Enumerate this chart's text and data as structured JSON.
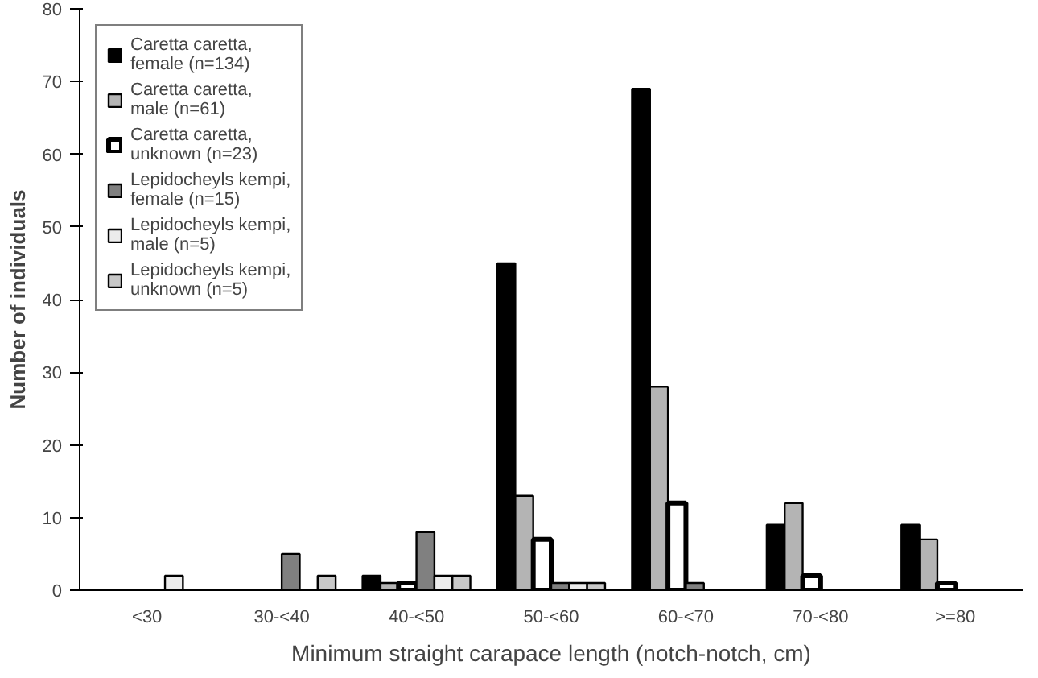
{
  "chart_data": {
    "type": "bar",
    "xlabel": "Minimum straight carapace length (notch-notch, cm)",
    "ylabel": "Number of individuals",
    "categories": [
      "<30",
      "30-<40",
      "40-<50",
      "50-<60",
      "60-<70",
      "70-<80",
      ">=80"
    ],
    "series": [
      {
        "name": "Caretta caretta, female (n=134)",
        "color": "#000000",
        "values": [
          null,
          null,
          2,
          45,
          69,
          9,
          9
        ]
      },
      {
        "name": "Caretta caretta, male (n=61)",
        "color": "#b4b4b4",
        "values": [
          null,
          null,
          1,
          13,
          28,
          12,
          7
        ]
      },
      {
        "name": "Caretta caretta, unknown (n=23)",
        "color": "#ffffff",
        "values": [
          null,
          null,
          1,
          7,
          12,
          2,
          1
        ]
      },
      {
        "name": "Lepidocheyls kempi, female (n=15)",
        "color": "#808080",
        "values": [
          null,
          5,
          8,
          1,
          1,
          null,
          null
        ]
      },
      {
        "name": "Lepidocheyls kempi, male (n=5)",
        "color": "#ececec",
        "values": [
          2,
          null,
          2,
          1,
          null,
          null,
          null
        ]
      },
      {
        "name": "Lepidocheyls kempi, unknown (n=5)",
        "color": "#c8c8c8",
        "values": [
          null,
          2,
          2,
          1,
          null,
          null,
          null
        ]
      }
    ],
    "ylim": [
      0,
      80
    ],
    "yticks": [
      0,
      10,
      20,
      30,
      40,
      50,
      60,
      70,
      80
    ],
    "grid": false,
    "legend": "top left"
  }
}
